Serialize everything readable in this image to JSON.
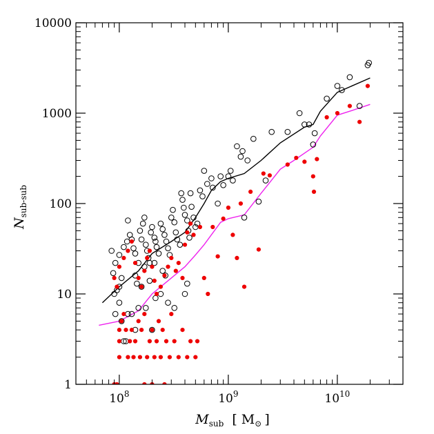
{
  "chart_data": {
    "type": "scatter",
    "title": "",
    "xlabel": "M",
    "xlabel_sub": "sub",
    "xlabel_unit_open": "[ M",
    "xlabel_unit_close": "]",
    "ylabel": "N",
    "ylabel_sub": "sub-sub",
    "x_scale": "log",
    "y_scale": "log",
    "xlim": [
      40000000,
      40000000000
    ],
    "ylim": [
      1,
      10000
    ],
    "grid": false,
    "y_tick_labels": [
      {
        "value": 1,
        "label": "1"
      },
      {
        "value": 10,
        "label": "10"
      },
      {
        "value": 100,
        "label": "100"
      },
      {
        "value": 1000,
        "label": "1000"
      },
      {
        "value": 10000,
        "label": "10000"
      }
    ],
    "x_tick_labels": [
      {
        "value": 100000000,
        "base": "10",
        "exp": "8"
      },
      {
        "value": 1000000000,
        "base": "10",
        "exp": "9"
      },
      {
        "value": 10000000000,
        "base": "10",
        "exp": "10"
      }
    ],
    "colors": {
      "open_points": "#000000",
      "filled_points": "#ee0000",
      "black_line": "#000000",
      "magenta_line": "#ee22ee"
    },
    "series": [
      {
        "style": "open-circle",
        "color": "#000000",
        "points": [
          [
            90000000,
            10
          ],
          [
            95000000,
            11
          ],
          [
            100000000,
            12
          ],
          [
            105000000,
            15
          ],
          [
            88000000,
            17
          ],
          [
            92000000,
            22
          ],
          [
            100000000,
            27
          ],
          [
            110000000,
            33
          ],
          [
            118000000,
            38
          ],
          [
            120000000,
            65
          ],
          [
            125000000,
            45
          ],
          [
            130000000,
            40
          ],
          [
            135000000,
            32
          ],
          [
            140000000,
            28
          ],
          [
            150000000,
            22
          ],
          [
            155000000,
            50
          ],
          [
            160000000,
            40
          ],
          [
            165000000,
            60
          ],
          [
            170000000,
            70
          ],
          [
            175000000,
            35
          ],
          [
            180000000,
            30
          ],
          [
            185000000,
            25
          ],
          [
            190000000,
            22
          ],
          [
            195000000,
            48
          ],
          [
            200000000,
            55
          ],
          [
            210000000,
            42
          ],
          [
            215000000,
            38
          ],
          [
            220000000,
            33
          ],
          [
            230000000,
            28
          ],
          [
            240000000,
            60
          ],
          [
            250000000,
            52
          ],
          [
            260000000,
            45
          ],
          [
            270000000,
            38
          ],
          [
            280000000,
            32
          ],
          [
            290000000,
            27
          ],
          [
            300000000,
            70
          ],
          [
            310000000,
            85
          ],
          [
            320000000,
            62
          ],
          [
            330000000,
            48
          ],
          [
            340000000,
            40
          ],
          [
            360000000,
            35
          ],
          [
            370000000,
            130
          ],
          [
            380000000,
            110
          ],
          [
            390000000,
            90
          ],
          [
            400000000,
            75
          ],
          [
            420000000,
            65
          ],
          [
            430000000,
            50
          ],
          [
            440000000,
            42
          ],
          [
            450000000,
            130
          ],
          [
            460000000,
            92
          ],
          [
            480000000,
            70
          ],
          [
            500000000,
            55
          ],
          [
            520000000,
            60
          ],
          [
            550000000,
            140
          ],
          [
            580000000,
            120
          ],
          [
            600000000,
            230
          ],
          [
            640000000,
            165
          ],
          [
            700000000,
            190
          ],
          [
            720000000,
            150
          ],
          [
            800000000,
            100
          ],
          [
            850000000,
            200
          ],
          [
            900000000,
            160
          ],
          [
            1000000000,
            200
          ],
          [
            1050000000,
            230
          ],
          [
            1100000000,
            180
          ],
          [
            1200000000,
            430
          ],
          [
            1300000000,
            330
          ],
          [
            1350000000,
            380
          ],
          [
            1400000000,
            70
          ],
          [
            1500000000,
            300
          ],
          [
            1700000000,
            520
          ],
          [
            1900000000,
            105
          ],
          [
            2200000000,
            180
          ],
          [
            2500000000,
            620
          ],
          [
            3500000000,
            620
          ],
          [
            4500000000,
            1000
          ],
          [
            5000000000,
            750
          ],
          [
            5500000000,
            750
          ],
          [
            6000000000,
            450
          ],
          [
            6200000000,
            600
          ],
          [
            8000000000,
            1450
          ],
          [
            10000000000,
            2000
          ],
          [
            11000000000,
            1800
          ],
          [
            13000000000,
            2500
          ],
          [
            16000000000,
            1200
          ],
          [
            19000000000,
            3400
          ],
          [
            19500000000,
            3600
          ],
          [
            85000000,
            30
          ],
          [
            92000000,
            6
          ],
          [
            100000000,
            8
          ],
          [
            105000000,
            5
          ],
          [
            110000000,
            3
          ],
          [
            115000000,
            3
          ],
          [
            120000000,
            6
          ],
          [
            130000000,
            6
          ],
          [
            140000000,
            4
          ],
          [
            150000000,
            7
          ],
          [
            160000000,
            12
          ],
          [
            175000000,
            7
          ],
          [
            200000000,
            4
          ],
          [
            215000000,
            9
          ],
          [
            240000000,
            10
          ],
          [
            280000000,
            8
          ],
          [
            320000000,
            7
          ],
          [
            400000000,
            10
          ],
          [
            420000000,
            13
          ],
          [
            250000000,
            18
          ],
          [
            265000000,
            16
          ],
          [
            210000000,
            22
          ],
          [
            190000000,
            14
          ],
          [
            170000000,
            20
          ],
          [
            140000000,
            16
          ],
          [
            145000000,
            13
          ]
        ]
      },
      {
        "style": "filled-circle",
        "color": "#ee0000",
        "points": [
          [
            90000000,
            1
          ],
          [
            95000000,
            1
          ],
          [
            100000000,
            2
          ],
          [
            100000000,
            3
          ],
          [
            100000000,
            4
          ],
          [
            105000000,
            5
          ],
          [
            110000000,
            6
          ],
          [
            115000000,
            4
          ],
          [
            120000000,
            2
          ],
          [
            125000000,
            3
          ],
          [
            130000000,
            4
          ],
          [
            135000000,
            2
          ],
          [
            140000000,
            3
          ],
          [
            150000000,
            5
          ],
          [
            155000000,
            2
          ],
          [
            160000000,
            4
          ],
          [
            170000000,
            6
          ],
          [
            180000000,
            2
          ],
          [
            190000000,
            3
          ],
          [
            200000000,
            4
          ],
          [
            210000000,
            2
          ],
          [
            220000000,
            3
          ],
          [
            230000000,
            5
          ],
          [
            240000000,
            2
          ],
          [
            250000000,
            4
          ],
          [
            270000000,
            3
          ],
          [
            290000000,
            2
          ],
          [
            300000000,
            6
          ],
          [
            320000000,
            3
          ],
          [
            350000000,
            2
          ],
          [
            380000000,
            4
          ],
          [
            420000000,
            2
          ],
          [
            450000000,
            3
          ],
          [
            500000000,
            2
          ],
          [
            520000000,
            3
          ],
          [
            90000000,
            15
          ],
          [
            95000000,
            12
          ],
          [
            100000000,
            20
          ],
          [
            110000000,
            25
          ],
          [
            120000000,
            30
          ],
          [
            130000000,
            38
          ],
          [
            140000000,
            22
          ],
          [
            150000000,
            15
          ],
          [
            160000000,
            12
          ],
          [
            170000000,
            18
          ],
          [
            180000000,
            25
          ],
          [
            190000000,
            30
          ],
          [
            200000000,
            20
          ],
          [
            210000000,
            14
          ],
          [
            220000000,
            10
          ],
          [
            240000000,
            12
          ],
          [
            260000000,
            16
          ],
          [
            280000000,
            20
          ],
          [
            300000000,
            25
          ],
          [
            330000000,
            18
          ],
          [
            350000000,
            22
          ],
          [
            380000000,
            15
          ],
          [
            400000000,
            35
          ],
          [
            420000000,
            48
          ],
          [
            450000000,
            60
          ],
          [
            480000000,
            45
          ],
          [
            550000000,
            55
          ],
          [
            600000000,
            15
          ],
          [
            650000000,
            10
          ],
          [
            720000000,
            55
          ],
          [
            800000000,
            26
          ],
          [
            900000000,
            68
          ],
          [
            1000000000,
            90
          ],
          [
            1100000000,
            45
          ],
          [
            1200000000,
            25
          ],
          [
            1300000000,
            100
          ],
          [
            1400000000,
            12
          ],
          [
            1600000000,
            135
          ],
          [
            1900000000,
            31
          ],
          [
            2100000000,
            215
          ],
          [
            2400000000,
            205
          ],
          [
            3500000000,
            270
          ],
          [
            4200000000,
            320
          ],
          [
            5000000000,
            290
          ],
          [
            6000000000,
            200
          ],
          [
            6500000000,
            310
          ],
          [
            6100000000,
            135
          ],
          [
            8000000000,
            900
          ],
          [
            10000000000,
            1000
          ],
          [
            13000000000,
            1200
          ],
          [
            16000000000,
            800
          ],
          [
            19000000000,
            2000
          ],
          [
            170000000,
            1
          ],
          [
            200000000,
            1
          ],
          [
            260000000,
            1
          ]
        ]
      },
      {
        "style": "line",
        "color": "#000000",
        "points": [
          [
            70000000,
            8
          ],
          [
            100000000,
            12
          ],
          [
            150000000,
            18
          ],
          [
            200000000,
            28
          ],
          [
            300000000,
            38
          ],
          [
            400000000,
            48
          ],
          [
            500000000,
            70
          ],
          [
            600000000,
            100
          ],
          [
            700000000,
            140
          ],
          [
            850000000,
            175
          ],
          [
            1000000000,
            190
          ],
          [
            1400000000,
            215
          ],
          [
            2000000000,
            300
          ],
          [
            3000000000,
            470
          ],
          [
            5000000000,
            700
          ],
          [
            6000000000,
            750
          ],
          [
            7000000000,
            1050
          ],
          [
            10000000000,
            1700
          ],
          [
            20000000000,
            2450
          ]
        ]
      },
      {
        "style": "line",
        "color": "#ee22ee",
        "points": [
          [
            65000000,
            4.5
          ],
          [
            100000000,
            5
          ],
          [
            150000000,
            6.5
          ],
          [
            200000000,
            10
          ],
          [
            300000000,
            15
          ],
          [
            400000000,
            20
          ],
          [
            500000000,
            27
          ],
          [
            600000000,
            35
          ],
          [
            850000000,
            62
          ],
          [
            1000000000,
            68
          ],
          [
            1400000000,
            75
          ],
          [
            2000000000,
            130
          ],
          [
            3000000000,
            240
          ],
          [
            4000000000,
            300
          ],
          [
            6000000000,
            420
          ],
          [
            7000000000,
            560
          ],
          [
            10000000000,
            950
          ],
          [
            13000000000,
            1050
          ],
          [
            20000000000,
            1250
          ]
        ]
      }
    ]
  }
}
